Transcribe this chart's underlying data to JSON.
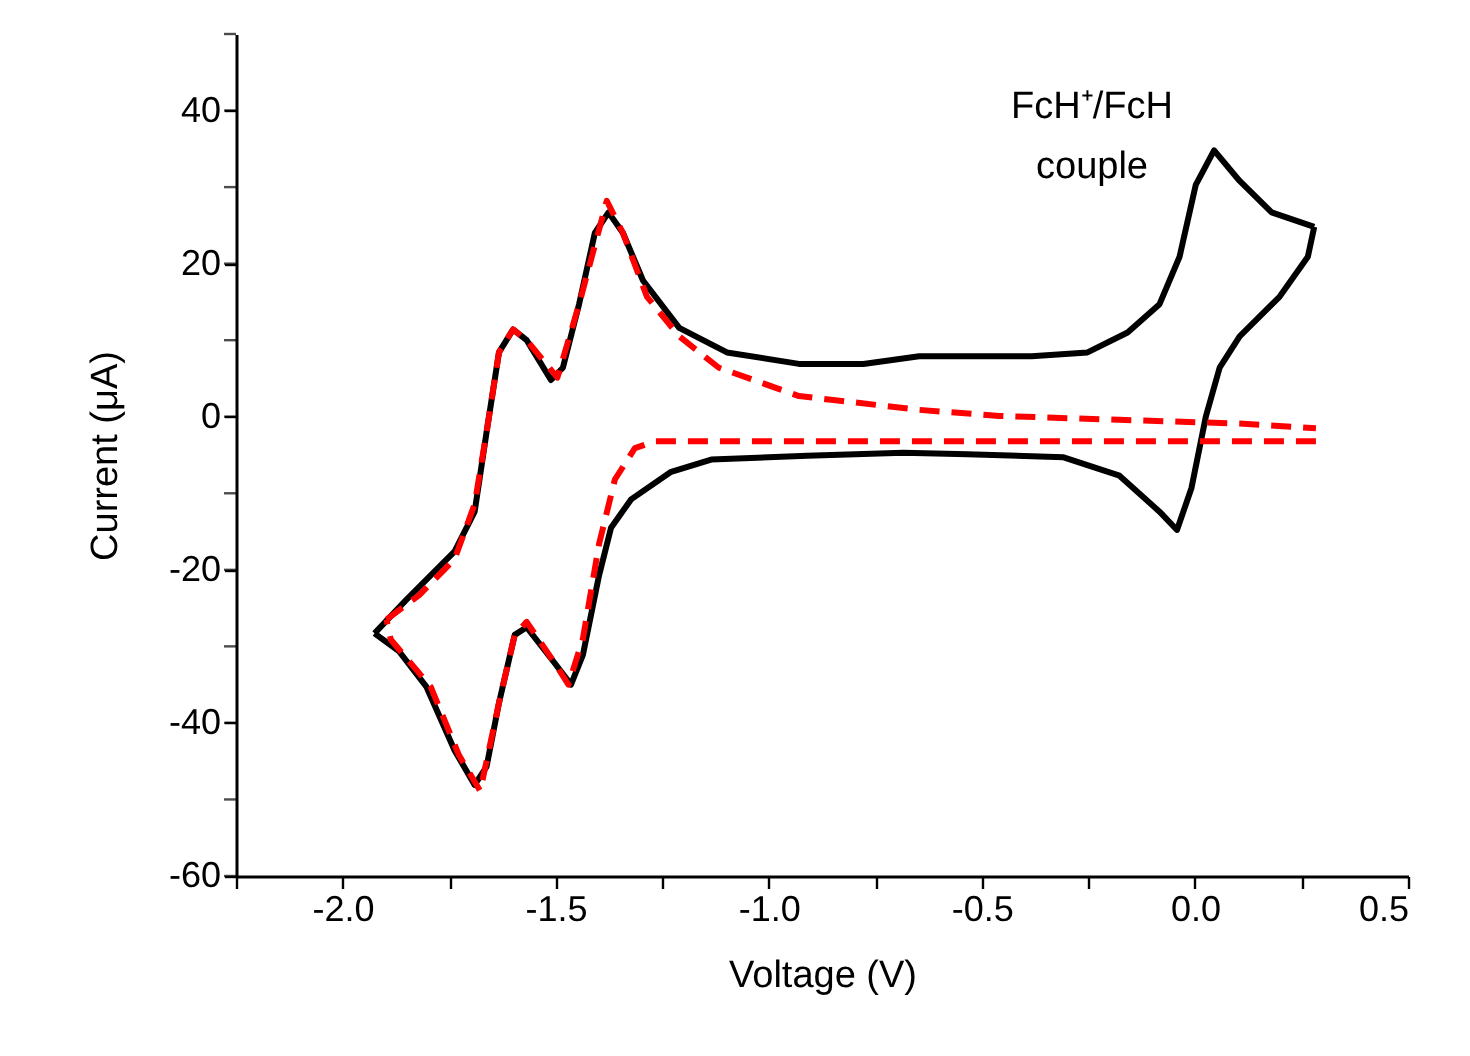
{
  "chart_data": {
    "type": "line",
    "xlabel": "Voltage (V)",
    "ylabel": "Current (μA)",
    "xlim": [
      -2.25,
      0.5
    ],
    "ylim": [
      -60,
      50
    ],
    "xticks": [
      {
        "value": -2.25,
        "label": null
      },
      {
        "value": -2.0,
        "label": "-2.0"
      },
      {
        "value": -1.75,
        "label": null
      },
      {
        "value": -1.5,
        "label": "-1.5"
      },
      {
        "value": -1.25,
        "label": null
      },
      {
        "value": -1.0,
        "label": "-1.0"
      },
      {
        "value": -0.75,
        "label": null
      },
      {
        "value": -0.5,
        "label": "-0.5"
      },
      {
        "value": -0.25,
        "label": null
      },
      {
        "value": 0,
        "label": "0.0"
      },
      {
        "value": 0.25,
        "label": null
      },
      {
        "value": 0.5,
        "label": "0.5"
      }
    ],
    "yticks": [
      -60,
      {
        "value": -50,
        "label": null
      },
      -40,
      {
        "value": -30,
        "label": null
      },
      -20,
      {
        "value": -10,
        "label": null
      },
      0,
      {
        "value": 10,
        "label": null
      },
      20,
      {
        "value": 30,
        "label": null
      },
      40,
      {
        "value": 50,
        "label": null
      }
    ],
    "annotations": [
      "FcH⁺/FcH\ncouple"
    ],
    "series": [
      {
        "color": "#000000",
        "line_style": "solid",
        "x": [
          -1.925,
          -1.85,
          -1.737,
          -1.69,
          -1.662,
          -1.633,
          -1.6,
          -1.568,
          -1.511,
          -1.483,
          -1.445,
          -1.408,
          -1.376,
          -1.342,
          -1.295,
          -1.21,
          -1.098,
          -0.929,
          -0.778,
          -0.647,
          -0.534,
          -0.383,
          -0.252,
          -0.158,
          -0.083,
          -0.036,
          0.002,
          0.045,
          0.105,
          0.18,
          0.28
        ],
        "values": [
          -28.3,
          -23.9,
          -17.6,
          -12.4,
          -2,
          8.4,
          11.4,
          10,
          4.8,
          6.4,
          14.7,
          24,
          26.7,
          24,
          17.8,
          11.6,
          8.4,
          6.9,
          6.9,
          7.9,
          7.9,
          7.9,
          8.4,
          11,
          14.7,
          20.9,
          30.3,
          34.8,
          30.8,
          26.7,
          24.8
        ]
      },
      {
        "color": "#000000",
        "line_style": "solid",
        "x": [
          0.28,
          0.265,
          0.199,
          0.105,
          0.058,
          0.026,
          -0.008,
          -0.042,
          -0.083,
          -0.177,
          -0.308,
          -0.534,
          -0.684,
          -0.91,
          -1.135,
          -1.229,
          -1.323,
          -1.37,
          -1.398,
          -1.436,
          -1.464,
          -1.502,
          -1.568,
          -1.596,
          -1.633,
          -1.662,
          -1.69,
          -1.737,
          -1.803,
          -1.868,
          -1.925
        ],
        "values": [
          24.8,
          20.9,
          15.7,
          10.5,
          6.4,
          0.1,
          -9.3,
          -14.8,
          -12.4,
          -7.7,
          -5.3,
          -4.9,
          -4.7,
          -5.1,
          -5.6,
          -7.2,
          -10.8,
          -14.5,
          -20.7,
          -31.1,
          -35,
          -32.2,
          -27.5,
          -28.5,
          -37.4,
          -45.7,
          -48.1,
          -43.6,
          -35.3,
          -30.6,
          -28.3
        ]
      },
      {
        "color": "#ff0000",
        "line_style": "dashed",
        "x": [
          -1.897,
          -1.82,
          -1.737,
          -1.69,
          -1.662,
          -1.633,
          -1.6,
          -1.568,
          -1.496,
          -1.445,
          -1.38,
          -1.342,
          -1.286,
          -1.21,
          -1.117,
          -0.929,
          -0.647,
          -0.459,
          -0.177,
          0.105,
          0.284
        ],
        "values": [
          -26.5,
          -23.3,
          -18.6,
          -11.4,
          -2,
          8.4,
          11.4,
          10,
          5.1,
          14.7,
          28.2,
          24,
          15.7,
          10.5,
          6.4,
          2.7,
          0.9,
          0.1,
          -0.4,
          -0.9,
          -1.5
        ]
      },
      {
        "color": "#ff0000",
        "line_style": "dashed",
        "x": [
          0.284,
          -0.459,
          -1.023,
          -1.267,
          -1.314,
          -1.361,
          -1.398,
          -1.436,
          -1.47,
          -1.502,
          -1.568,
          -1.596,
          -1.633,
          -1.677,
          -1.727,
          -1.793,
          -1.887,
          -1.897
        ],
        "values": [
          -3.2,
          -3.2,
          -3.2,
          -3.2,
          -4.1,
          -8.2,
          -16.6,
          -29,
          -35,
          -32.2,
          -26.8,
          -28.5,
          -37.4,
          -48.9,
          -44.2,
          -35.3,
          -29.1,
          -26.5
        ]
      }
    ]
  }
}
